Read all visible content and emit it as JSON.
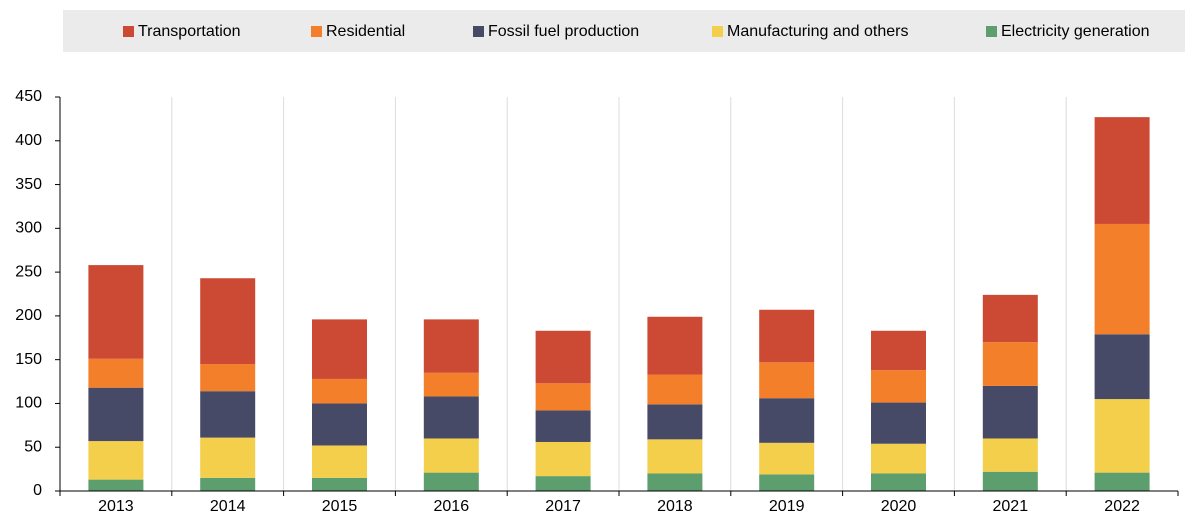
{
  "chart_data": {
    "type": "stacked-bar",
    "categories": [
      "2013",
      "2014",
      "2015",
      "2016",
      "2017",
      "2018",
      "2019",
      "2020",
      "2021",
      "2022"
    ],
    "series": [
      {
        "name": "Transportation",
        "color": "#cc4a33",
        "values": [
          107,
          98,
          68,
          61,
          60,
          66,
          60,
          45,
          54,
          122
        ]
      },
      {
        "name": "Residential",
        "color": "#f47f2a",
        "values": [
          33,
          31,
          28,
          27,
          31,
          34,
          41,
          37,
          50,
          126
        ]
      },
      {
        "name": "Fossil fuel production",
        "color": "#474a66",
        "values": [
          61,
          53,
          48,
          48,
          36,
          40,
          51,
          47,
          60,
          74
        ]
      },
      {
        "name": "Manufacturing and others",
        "color": "#f3cf4b",
        "values": [
          44,
          46,
          37,
          39,
          39,
          39,
          36,
          34,
          38,
          84
        ]
      },
      {
        "name": "Electricity generation",
        "color": "#5c9e6e",
        "values": [
          13,
          15,
          15,
          21,
          17,
          20,
          19,
          20,
          22,
          21
        ]
      }
    ],
    "ylim": [
      0,
      450
    ],
    "yticks": [
      0,
      50,
      100,
      150,
      200,
      250,
      300,
      350,
      400,
      450
    ],
    "grid": true
  }
}
